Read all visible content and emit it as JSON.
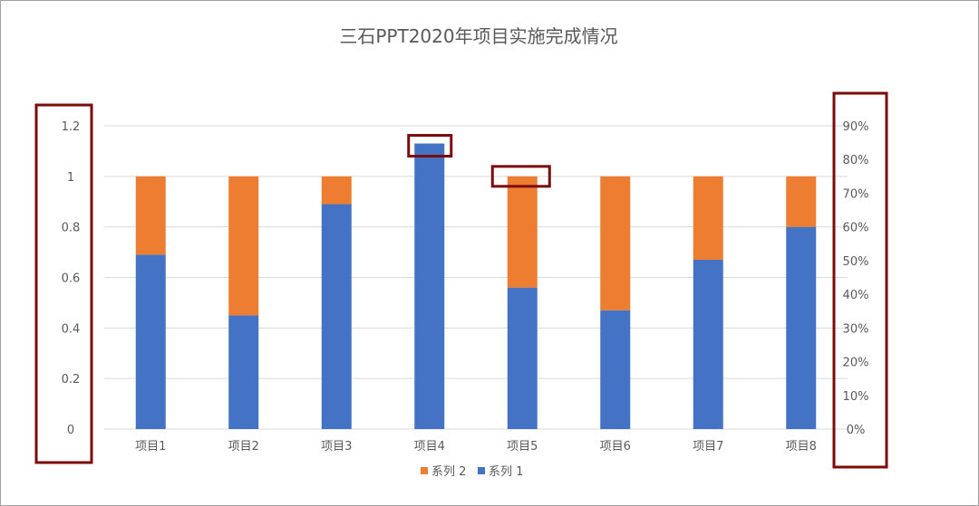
{
  "chart_data": {
    "type": "bar",
    "stacked": true,
    "title": "三石PPT2020年项目实施完成情况",
    "categories": [
      "项目1",
      "项目2",
      "项目3",
      "项目4",
      "项目5",
      "项目6",
      "项目7",
      "项目8"
    ],
    "series": [
      {
        "name": "系列 1",
        "color": "#4472C4",
        "values": [
          0.69,
          0.45,
          0.89,
          1.13,
          0.56,
          0.47,
          0.67,
          0.8
        ]
      },
      {
        "name": "系列 2",
        "color": "#ED7D31",
        "values": [
          0.31,
          0.55,
          0.11,
          0.0,
          0.44,
          0.53,
          0.33,
          0.2
        ]
      }
    ],
    "ylim": [
      0,
      1.2
    ],
    "y_ticks": [
      "0",
      "0.2",
      "0.4",
      "0.6",
      "0.8",
      "1",
      "1.2"
    ],
    "y2lim": [
      0,
      0.9
    ],
    "y2_ticks": [
      "0%",
      "10%",
      "20%",
      "30%",
      "40%",
      "50%",
      "60%",
      "70%",
      "80%",
      "90%"
    ],
    "grid": true,
    "legend_position": "bottom",
    "legend_order": [
      "系列 2",
      "系列 1"
    ],
    "highlight_color": "#7B0A0A"
  }
}
